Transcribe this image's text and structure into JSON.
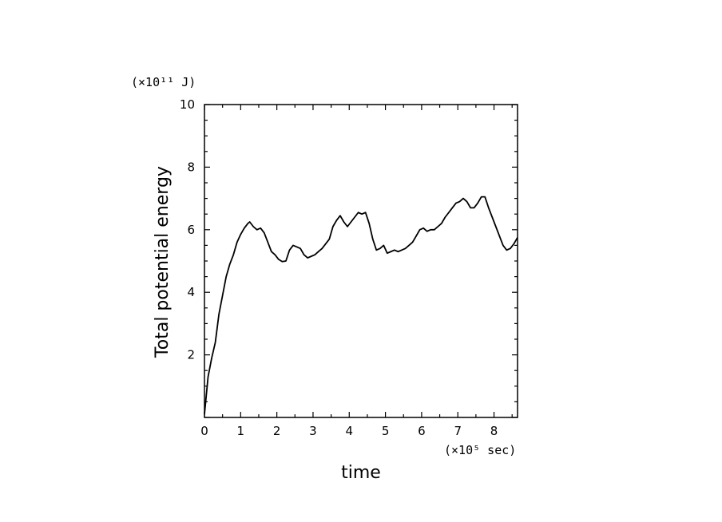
{
  "chart_data": {
    "type": "line",
    "title": "",
    "xlabel": "time",
    "ylabel": "Total potential energy",
    "x_unit": "(×10⁵ sec)",
    "y_unit": "(×10¹¹ J)",
    "xlim": [
      0,
      8.65
    ],
    "ylim": [
      0,
      10
    ],
    "x_ticks": [
      "0",
      "1",
      "2",
      "3",
      "4",
      "5",
      "6",
      "7",
      "8"
    ],
    "y_ticks": [
      "2",
      "4",
      "6",
      "8",
      "10"
    ],
    "grid": false,
    "series": [
      {
        "color": "#000000",
        "x": [
          0,
          0.05,
          0.1,
          0.2,
          0.3,
          0.4,
          0.5,
          0.6,
          0.7,
          0.8,
          0.9,
          1.0,
          1.1,
          1.2,
          1.25,
          1.35,
          1.45,
          1.55,
          1.65,
          1.75,
          1.85,
          1.95,
          2.05,
          2.15,
          2.25,
          2.35,
          2.45,
          2.55,
          2.65,
          2.75,
          2.85,
          2.95,
          3.05,
          3.15,
          3.25,
          3.35,
          3.45,
          3.55,
          3.65,
          3.75,
          3.85,
          3.95,
          4.05,
          4.15,
          4.25,
          4.35,
          4.45,
          4.55,
          4.65,
          4.75,
          4.85,
          4.95,
          5.05,
          5.15,
          5.25,
          5.35,
          5.45,
          5.55,
          5.65,
          5.75,
          5.85,
          5.95,
          6.05,
          6.15,
          6.25,
          6.35,
          6.45,
          6.55,
          6.65,
          6.75,
          6.85,
          6.95,
          7.05,
          7.15,
          7.25,
          7.35,
          7.45,
          7.55,
          7.65,
          7.75,
          7.85,
          7.95,
          8.05,
          8.15,
          8.25,
          8.35,
          8.45,
          8.55,
          8.65
        ],
        "y": [
          0.1,
          0.7,
          1.3,
          1.9,
          2.4,
          3.3,
          3.9,
          4.5,
          4.9,
          5.2,
          5.6,
          5.85,
          6.05,
          6.2,
          6.25,
          6.1,
          6.0,
          6.05,
          5.9,
          5.6,
          5.3,
          5.2,
          5.05,
          4.98,
          5.0,
          5.35,
          5.5,
          5.45,
          5.4,
          5.2,
          5.1,
          5.15,
          5.2,
          5.3,
          5.4,
          5.55,
          5.7,
          6.1,
          6.3,
          6.45,
          6.25,
          6.1,
          6.25,
          6.4,
          6.55,
          6.5,
          6.55,
          6.2,
          5.7,
          5.35,
          5.4,
          5.5,
          5.25,
          5.3,
          5.35,
          5.3,
          5.35,
          5.4,
          5.5,
          5.6,
          5.8,
          6.0,
          6.05,
          5.95,
          6.0,
          6.0,
          6.1,
          6.2,
          6.4,
          6.55,
          6.7,
          6.85,
          6.9,
          7.0,
          6.9,
          6.7,
          6.7,
          6.85,
          7.05,
          7.05,
          6.7,
          6.4,
          6.1,
          5.8,
          5.5,
          5.35,
          5.4,
          5.55,
          5.75
        ]
      }
    ]
  }
}
